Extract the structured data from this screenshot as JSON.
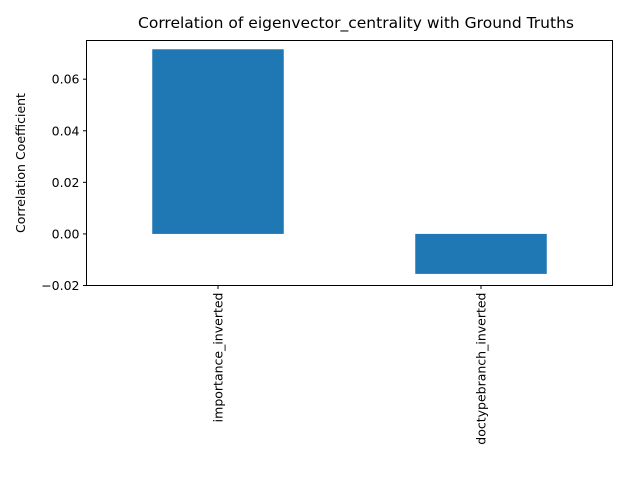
{
  "chart_data": {
    "type": "bar",
    "title": "Correlation of eigenvector_centrality with Ground Truths",
    "xlabel": "",
    "ylabel": "Correlation Coefficient",
    "categories": [
      "importance_inverted",
      "doctypebranch_inverted"
    ],
    "values": [
      0.0716,
      -0.0155
    ],
    "ylim": [
      -0.02,
      0.075
    ],
    "yticks": [
      -0.02,
      0.0,
      0.02,
      0.04,
      0.06
    ],
    "ytick_labels": [
      "−0.02",
      "0.00",
      "0.02",
      "0.04",
      "0.06"
    ],
    "grid": false,
    "legend": "none",
    "bar_color": "#1f77b4"
  }
}
